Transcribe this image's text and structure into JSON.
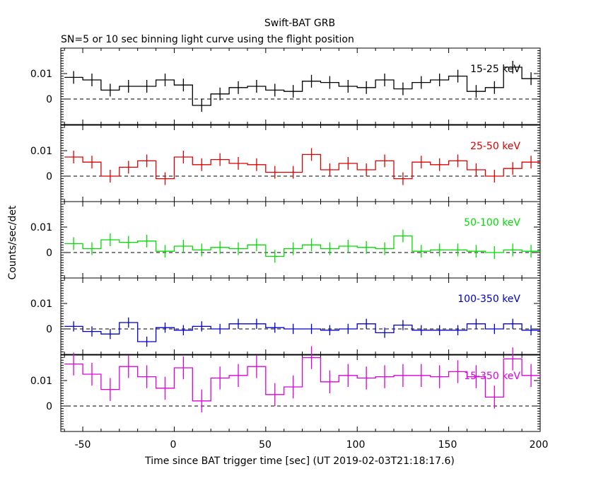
{
  "title": "Swift-BAT GRB",
  "subtitle": "SN=5 or 10 sec binning light curve using the flight position",
  "ylabel": "Counts/sec/det",
  "xlabel": "Time since BAT trigger time [sec] (UT 2019-02-03T21:18:17.6)",
  "x_ticks": [
    "-50",
    "0",
    "50",
    "100",
    "150",
    "200"
  ],
  "chart_data": {
    "type": "line",
    "title": "Swift-BAT GRB",
    "subtitle": "SN=5 or 10 sec binning light curve using the flight position",
    "xlabel": "Time since BAT trigger time [sec] (UT 2019-02-03T21:18:17.6)",
    "ylabel": "Counts/sec/det",
    "xlim": [
      -62,
      200
    ],
    "ylim": [
      -0.01,
      0.02
    ],
    "x_ticks": [
      -50,
      0,
      50,
      100,
      150,
      200
    ],
    "y_ticks": [
      0,
      0.01
    ],
    "bin_width": 10,
    "x": [
      -55,
      -45,
      -35,
      -25,
      -15,
      -5,
      5,
      15,
      25,
      35,
      45,
      55,
      65,
      75,
      85,
      95,
      105,
      115,
      125,
      135,
      145,
      155,
      165,
      175,
      185,
      195
    ],
    "series": [
      {
        "name": "15-25 keV",
        "color": "#000000",
        "values": [
          0.0085,
          0.0075,
          0.0035,
          0.005,
          0.005,
          0.0075,
          0.0055,
          -0.0025,
          0.002,
          0.0045,
          0.005,
          0.0035,
          0.003,
          0.007,
          0.0065,
          0.005,
          0.0045,
          0.0075,
          0.004,
          0.0065,
          0.0075,
          0.009,
          0.003,
          0.0045,
          0.0125,
          0.008
        ],
        "errors": [
          0.0025,
          0.0025,
          0.0025,
          0.0025,
          0.0025,
          0.0025,
          0.0025,
          0.0025,
          0.0025,
          0.0025,
          0.0025,
          0.0025,
          0.0025,
          0.0025,
          0.0025,
          0.0025,
          0.0025,
          0.0025,
          0.0025,
          0.0025,
          0.0025,
          0.0025,
          0.0025,
          0.0025,
          0.0025,
          0.0025
        ]
      },
      {
        "name": "25-50 keV",
        "color": "#dd0000",
        "values": [
          0.0075,
          0.0055,
          0.0,
          0.0035,
          0.006,
          -0.001,
          0.0075,
          0.0045,
          0.0065,
          0.005,
          0.0045,
          0.0015,
          0.0015,
          0.0085,
          0.0025,
          0.005,
          0.0025,
          0.006,
          -0.001,
          0.0055,
          0.0045,
          0.006,
          0.0025,
          0.0,
          0.003,
          0.0055
        ],
        "errors": [
          0.0025,
          0.0025,
          0.0025,
          0.0025,
          0.0025,
          0.0025,
          0.0025,
          0.0025,
          0.0025,
          0.0025,
          0.0025,
          0.0025,
          0.0025,
          0.0025,
          0.0025,
          0.0025,
          0.0025,
          0.0025,
          0.0025,
          0.0025,
          0.0025,
          0.0025,
          0.0025,
          0.0025,
          0.0025,
          0.0025
        ]
      },
      {
        "name": "50-100 keV",
        "color": "#00dd00",
        "values": [
          0.0035,
          0.0015,
          0.005,
          0.004,
          0.0045,
          0.0005,
          0.0025,
          0.001,
          0.002,
          0.0015,
          0.003,
          -0.0015,
          0.0015,
          0.003,
          0.0015,
          0.0025,
          0.002,
          0.0015,
          0.0065,
          0.0005,
          0.001,
          0.001,
          0.0005,
          0.0,
          0.001,
          0.0005
        ],
        "errors": [
          0.0025,
          0.0025,
          0.0025,
          0.0025,
          0.0025,
          0.0025,
          0.0025,
          0.0025,
          0.0025,
          0.0025,
          0.0025,
          0.0025,
          0.0025,
          0.0025,
          0.0025,
          0.0025,
          0.0025,
          0.0025,
          0.0025,
          0.0025,
          0.0025,
          0.0025,
          0.0025,
          0.0025,
          0.0025,
          0.0025
        ]
      },
      {
        "name": "100-350 keV",
        "color": "#0000cc",
        "values": [
          0.001,
          -0.001,
          -0.002,
          0.0025,
          -0.005,
          0.0005,
          -0.0005,
          0.001,
          0.0,
          0.002,
          0.002,
          0.0005,
          0.0,
          0.0,
          -0.0005,
          0.0,
          0.002,
          -0.0015,
          0.0015,
          -0.0005,
          -0.0005,
          -0.0005,
          0.002,
          0.0,
          0.002,
          -0.0005
        ],
        "errors": [
          0.002,
          0.002,
          0.002,
          0.002,
          0.002,
          0.002,
          0.002,
          0.002,
          0.002,
          0.002,
          0.002,
          0.002,
          0.002,
          0.002,
          0.002,
          0.002,
          0.002,
          0.002,
          0.002,
          0.002,
          0.002,
          0.002,
          0.002,
          0.002,
          0.002,
          0.002
        ]
      },
      {
        "name": "15-350 keV",
        "color": "#dd00dd",
        "values": [
          0.0165,
          0.0125,
          0.0065,
          0.0155,
          0.0115,
          0.007,
          0.015,
          0.002,
          0.011,
          0.012,
          0.0155,
          0.0045,
          0.0075,
          0.019,
          0.0095,
          0.012,
          0.011,
          0.0115,
          0.012,
          0.012,
          0.0115,
          0.0135,
          0.0115,
          0.0035,
          0.0185,
          0.012
        ],
        "errors": [
          0.0045,
          0.0045,
          0.0045,
          0.0045,
          0.0045,
          0.0045,
          0.0045,
          0.0045,
          0.0045,
          0.0045,
          0.0045,
          0.0045,
          0.0045,
          0.0045,
          0.0045,
          0.0045,
          0.0045,
          0.0045,
          0.0045,
          0.0045,
          0.0045,
          0.0045,
          0.0045,
          0.0045,
          0.0045,
          0.0045
        ]
      }
    ],
    "zero_line": "dashed",
    "grid": false
  }
}
